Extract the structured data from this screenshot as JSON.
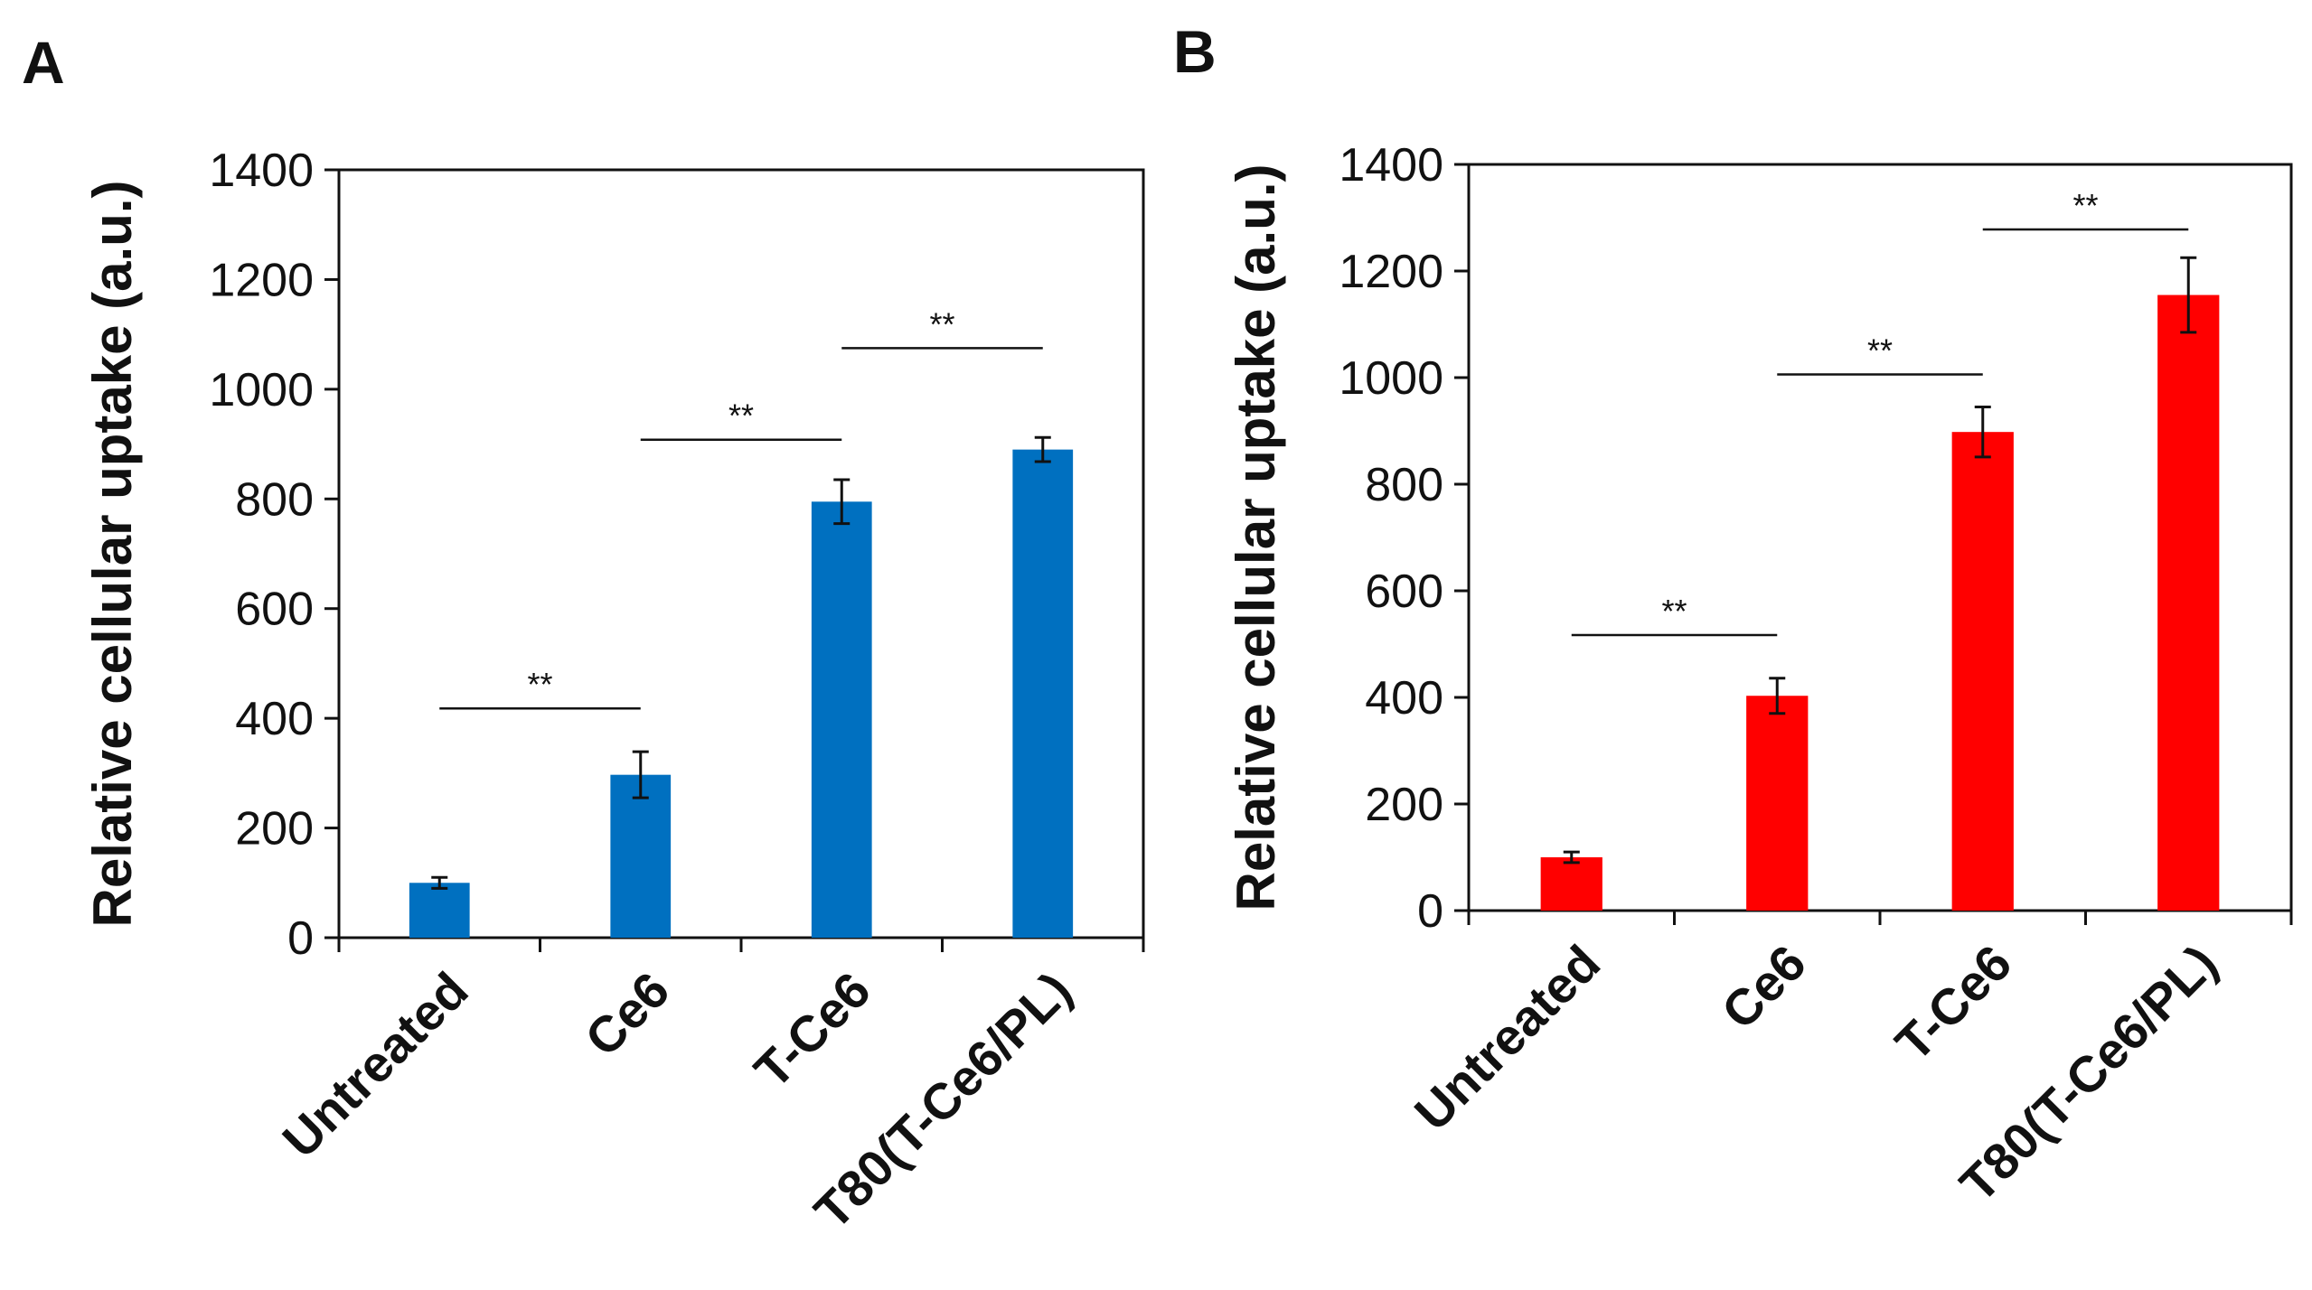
{
  "chart_data": [
    {
      "type": "bar",
      "panel": "A",
      "title": "",
      "ylabel": "Relative cellular uptake (a.u.)",
      "xlabel": "",
      "ylim": [
        0,
        1400
      ],
      "yticks": [
        0,
        200,
        400,
        600,
        800,
        1000,
        1200,
        1400
      ],
      "categories": [
        "Untreated",
        "Ce6",
        "T-Ce6",
        "T80(T-Ce6/PL)"
      ],
      "values": [
        100,
        297,
        795,
        890
      ],
      "errors": [
        10,
        42,
        40,
        22
      ],
      "bar_color": "#0070C0",
      "significance": [
        {
          "from": 0,
          "to": 1,
          "y": 418,
          "label": "**"
        },
        {
          "from": 1,
          "to": 2,
          "y": 908,
          "label": "**"
        },
        {
          "from": 2,
          "to": 3,
          "y": 1075,
          "label": "**"
        }
      ]
    },
    {
      "type": "bar",
      "panel": "B",
      "title": "",
      "ylabel": "Relative cellular uptake (a.u.)",
      "xlabel": "",
      "ylim": [
        0,
        1400
      ],
      "yticks": [
        0,
        200,
        400,
        600,
        800,
        1000,
        1200,
        1400
      ],
      "categories": [
        "Untreated",
        "Ce6",
        "T-Ce6",
        "T80(T-Ce6/PL)"
      ],
      "values": [
        100,
        403,
        898,
        1155
      ],
      "errors": [
        10,
        33,
        47,
        70
      ],
      "bar_color": "#FF0000",
      "significance": [
        {
          "from": 0,
          "to": 1,
          "y": 517,
          "label": "**"
        },
        {
          "from": 1,
          "to": 2,
          "y": 1006,
          "label": "**"
        },
        {
          "from": 2,
          "to": 3,
          "y": 1278,
          "label": "**"
        }
      ]
    }
  ]
}
